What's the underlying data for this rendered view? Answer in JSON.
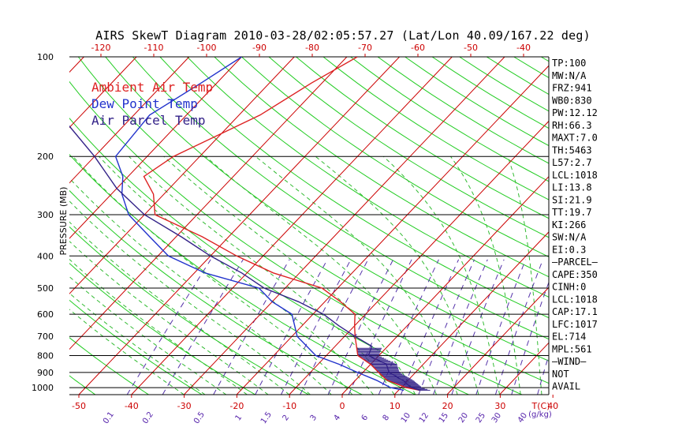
{
  "title": "AIRS SkewT Diagram 2010-03-28/02:05:57.27 (Lat/Lon 40.09/167.22 deg)",
  "colors": {
    "ambient": "#dd2222",
    "dewpoint": "#2233cc",
    "parcel": "#332288",
    "isotherm": "#cc0000",
    "dry_adiabat": "#22cc22",
    "moist_adiabat": "#33bb33",
    "mixing_ratio": "#5533aa",
    "isobar": "#000000"
  },
  "legend": [
    {
      "label": "Ambient Air Temp",
      "color": "#dd2222"
    },
    {
      "label": "Dew Point Temp",
      "color": "#2233cc"
    },
    {
      "label": "Air Parcel Temp",
      "color": "#332288"
    }
  ],
  "indices": [
    "TP:100",
    "MW:N/A",
    "FRZ:941",
    "WB0:830",
    "PW:12.12",
    "RH:66.3",
    "MAXT:7.0",
    "TH:5463",
    "L57:2.7",
    "LCL:1018",
    "LI:13.8",
    "SI:21.9",
    "TT:19.7",
    "KI:266",
    "SW:N/A",
    "EI:0.3",
    "—PARCEL—",
    "CAPE:350",
    "CINH:0",
    "LCL:1018",
    "CAP:17.1",
    "LFC:1017",
    "EL:714",
    "MPL:561",
    "—WIND—",
    "NOT",
    "AVAIL"
  ],
  "chart_data": {
    "type": "line",
    "title": "AIRS SkewT Diagram 2010-03-28/02:05:57.27 (Lat/Lon 40.09/167.22 deg)",
    "ylabel": "PRESSURE (MB)",
    "x_unit_label": "T(C)",
    "mixing_unit_label": "(g/kg)",
    "ylim": [
      1050,
      100
    ],
    "y_scale": "log",
    "pressure_levels": [
      100,
      200,
      300,
      400,
      500,
      600,
      700,
      800,
      900,
      1000
    ],
    "x_ticks_bottom": [
      -50,
      -40,
      -30,
      -20,
      -10,
      0,
      10,
      20,
      30,
      40
    ],
    "x_ticks_top": [
      -120,
      -110,
      -100,
      -90,
      -80,
      -70,
      -60,
      -50,
      -40
    ],
    "mixing_ratio_labels": [
      "0.1",
      "0.2",
      "0.5",
      "1",
      "1.5",
      "2",
      "3",
      "4",
      "6",
      "8",
      "10",
      "12",
      "15",
      "20",
      "25",
      "30",
      "40"
    ],
    "series": [
      {
        "name": "Ambient Air Temp",
        "points": [
          [
            100,
            -58
          ],
          [
            120,
            -62
          ],
          [
            150,
            -66
          ],
          [
            200,
            -75
          ],
          [
            230,
            -77
          ],
          [
            260,
            -72
          ],
          [
            300,
            -68
          ],
          [
            350,
            -55
          ],
          [
            400,
            -45
          ],
          [
            450,
            -35
          ],
          [
            500,
            -23
          ],
          [
            550,
            -17
          ],
          [
            600,
            -12
          ],
          [
            650,
            -10
          ],
          [
            700,
            -8
          ],
          [
            800,
            -4
          ],
          [
            850,
            0
          ],
          [
            900,
            3
          ],
          [
            950,
            6
          ],
          [
            1000,
            11
          ],
          [
            1018,
            14
          ]
        ]
      },
      {
        "name": "Dew Point Temp",
        "points": [
          [
            100,
            -80
          ],
          [
            120,
            -83
          ],
          [
            150,
            -87
          ],
          [
            200,
            -86
          ],
          [
            230,
            -81
          ],
          [
            260,
            -78
          ],
          [
            300,
            -73
          ],
          [
            350,
            -65
          ],
          [
            400,
            -58
          ],
          [
            450,
            -48
          ],
          [
            500,
            -35
          ],
          [
            550,
            -30
          ],
          [
            600,
            -24
          ],
          [
            700,
            -19
          ],
          [
            800,
            -12
          ],
          [
            850,
            -6
          ],
          [
            900,
            -1
          ],
          [
            950,
            4
          ],
          [
            1000,
            8
          ],
          [
            1018,
            11
          ]
        ]
      },
      {
        "name": "Air Parcel Temp",
        "points": [
          [
            100,
            -120
          ],
          [
            150,
            -104
          ],
          [
            200,
            -90
          ],
          [
            250,
            -80
          ],
          [
            300,
            -70
          ],
          [
            350,
            -59
          ],
          [
            400,
            -50
          ],
          [
            450,
            -41
          ],
          [
            500,
            -34
          ],
          [
            550,
            -25
          ],
          [
            600,
            -18
          ],
          [
            650,
            -13
          ],
          [
            700,
            -8
          ],
          [
            750,
            -3
          ],
          [
            800,
            -2
          ],
          [
            850,
            3
          ],
          [
            900,
            5
          ],
          [
            950,
            9
          ],
          [
            1000,
            12
          ],
          [
            1018,
            14
          ]
        ]
      }
    ],
    "cape_shading": {
      "from_hpa": 760,
      "to_hpa": 1018
    }
  }
}
